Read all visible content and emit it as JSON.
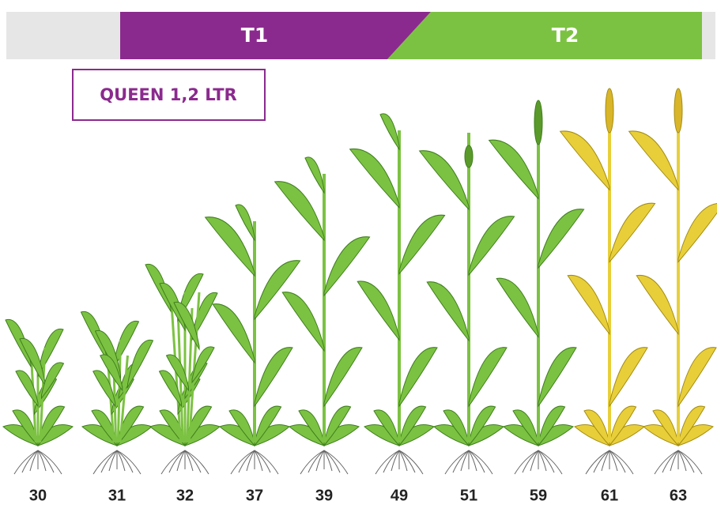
{
  "header": {
    "segments": [
      "T1",
      "T2"
    ]
  },
  "treatment": {
    "label": "QUEEN 1,2 LTR"
  },
  "stages": [
    30,
    31,
    32,
    37,
    39,
    49,
    51,
    59,
    61,
    63
  ]
}
